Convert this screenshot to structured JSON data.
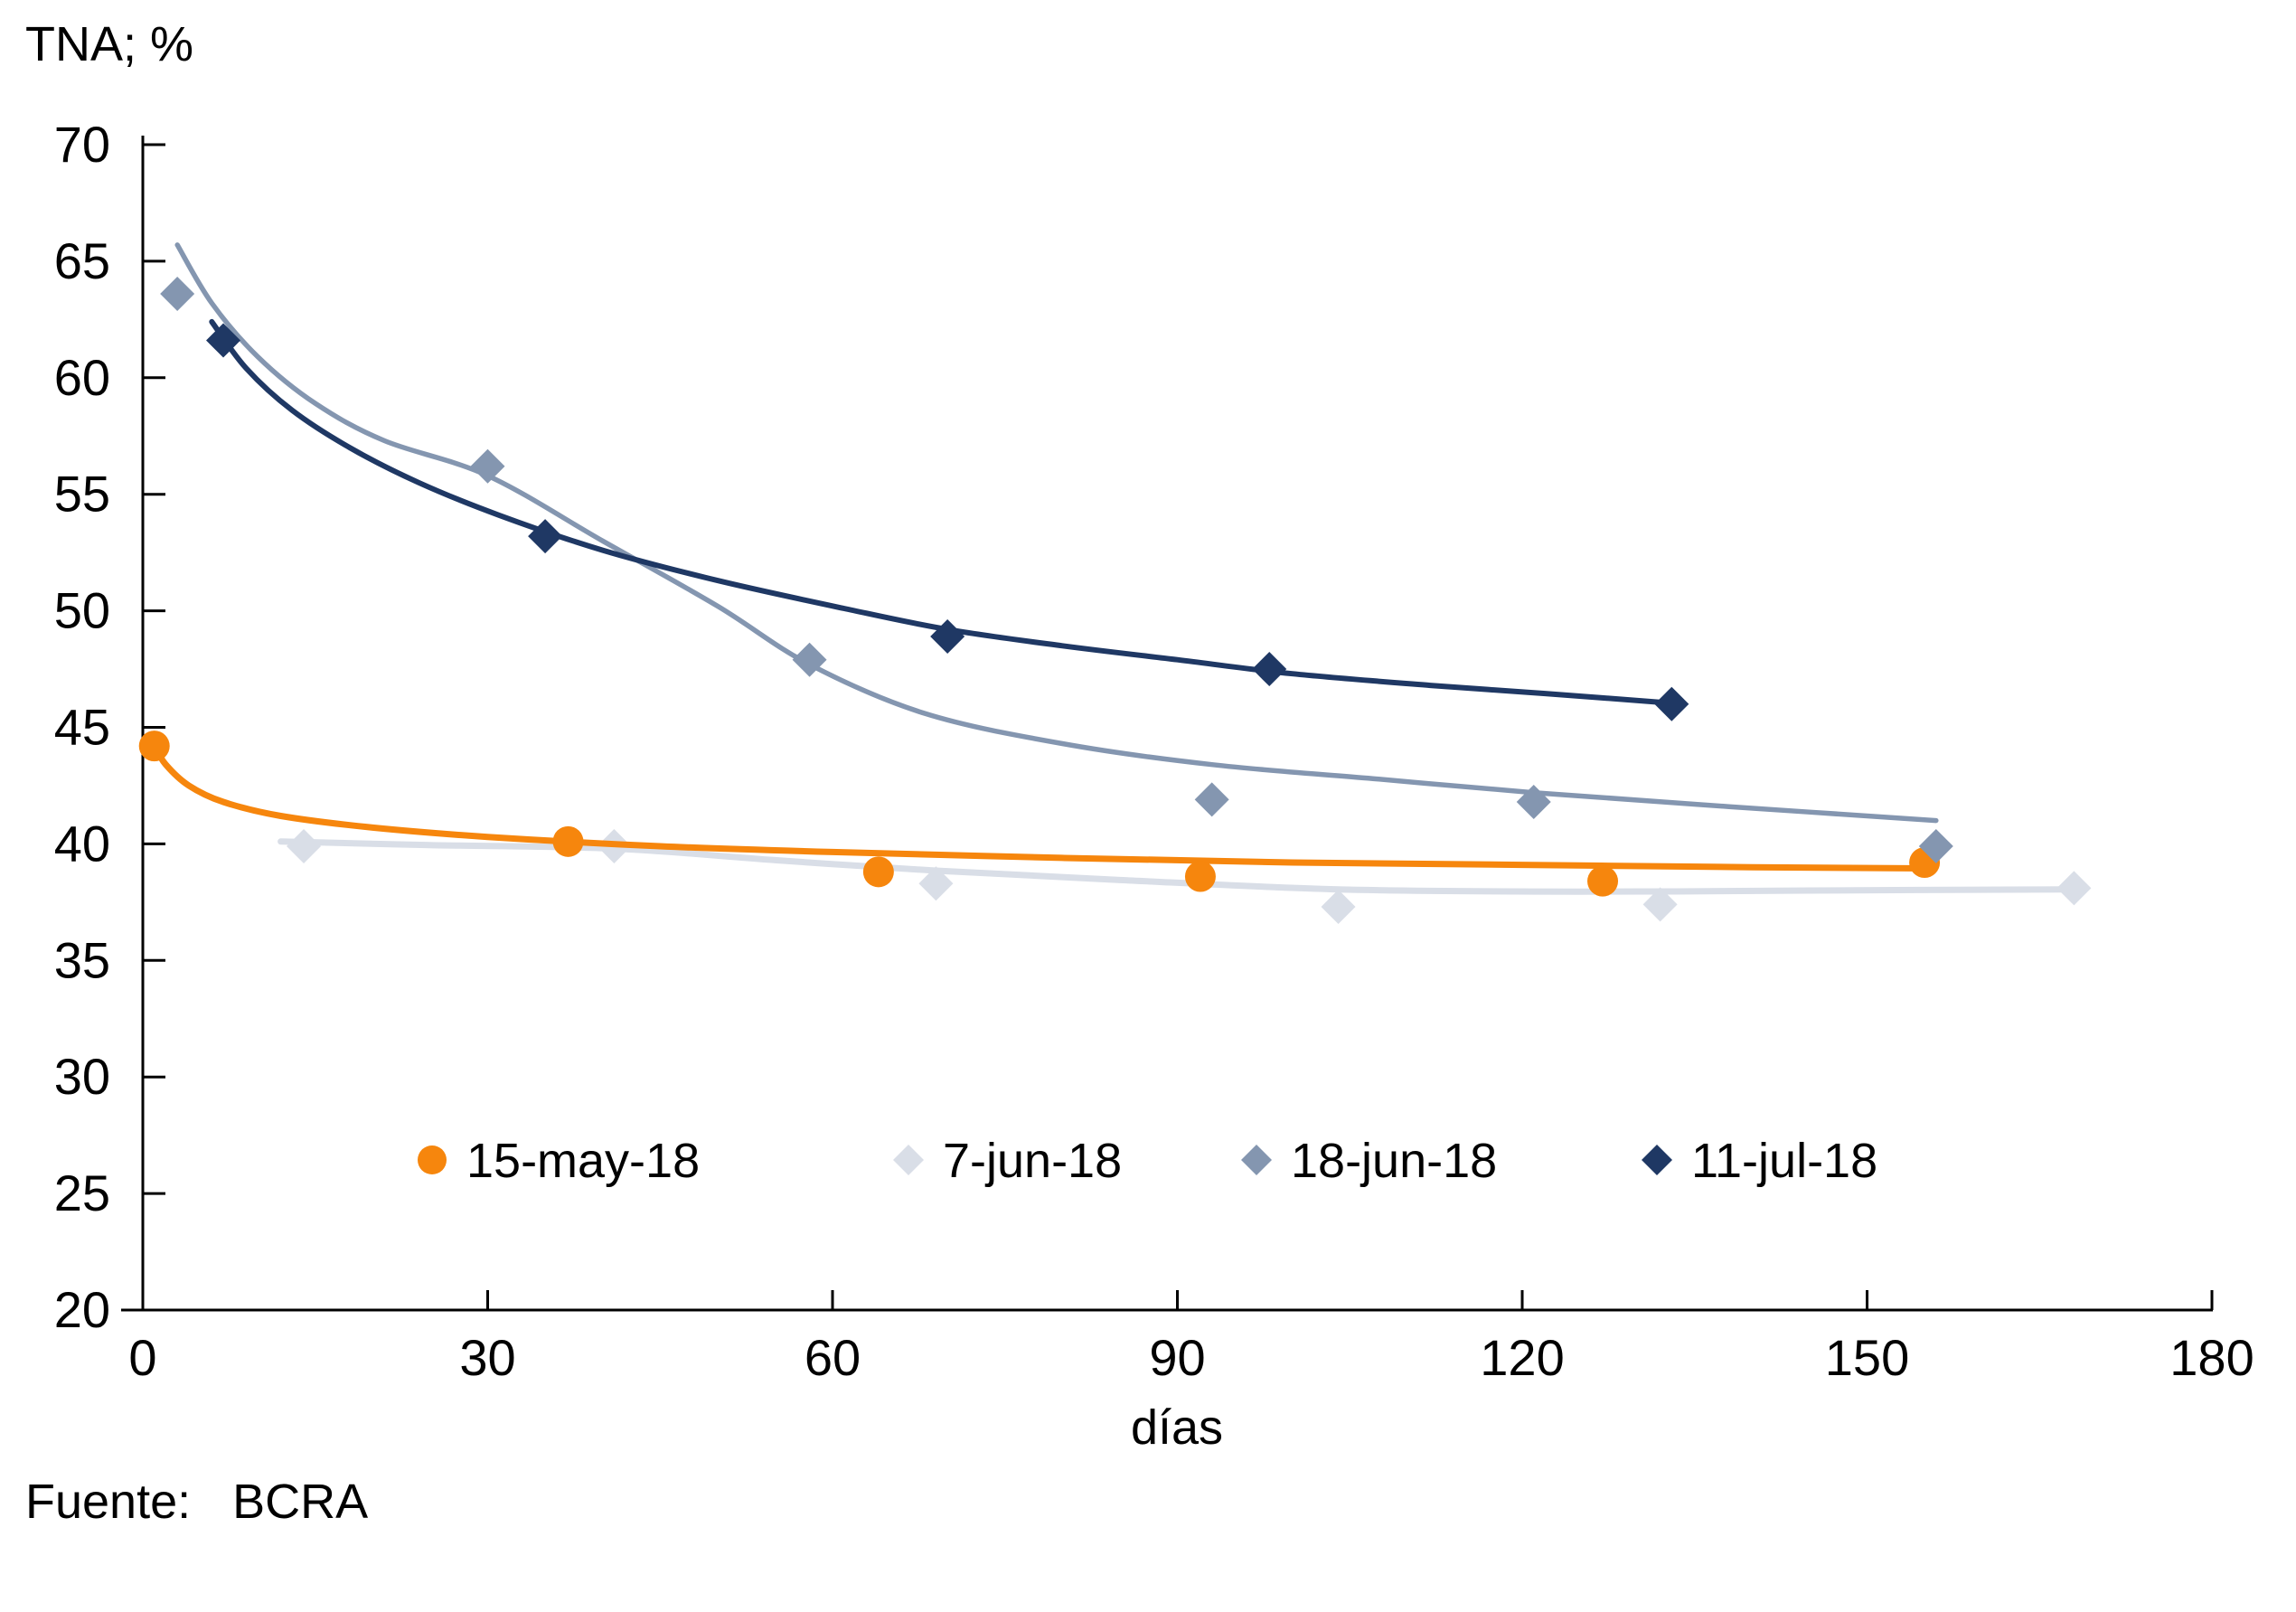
{
  "header": {
    "y_axis_title": "TNA; %"
  },
  "source": {
    "prefix": "Fuente:",
    "text": "BCRA"
  },
  "chart_data": {
    "type": "scatter",
    "title": "TNA; %",
    "xlabel": "días",
    "ylabel": "TNA; %",
    "xlim": [
      0,
      180
    ],
    "ylim": [
      20,
      70
    ],
    "x_tick_step": 30,
    "y_tick_step": 5,
    "x_ticks": [
      0,
      30,
      60,
      90,
      120,
      150,
      180
    ],
    "y_ticks": [
      70,
      65,
      60,
      55,
      50,
      45,
      40,
      35,
      30,
      25,
      20
    ],
    "grid": false,
    "legend_position": "bottom-center-inside",
    "colors": {
      "axis": "#000000",
      "text": "#000000"
    },
    "series": [
      {
        "name": "15-may-18",
        "color": "#F6860D",
        "marker": "circle",
        "points": [
          [
            1,
            44.2
          ],
          [
            37,
            40.1
          ],
          [
            64,
            38.8
          ],
          [
            92,
            38.6
          ],
          [
            127,
            38.4
          ],
          [
            155,
            39.2
          ]
        ],
        "trend": [
          [
            1,
            44.2
          ],
          [
            2,
            43.4
          ],
          [
            4,
            42.5
          ],
          [
            7,
            41.8
          ],
          [
            12,
            41.2
          ],
          [
            20,
            40.7
          ],
          [
            30,
            40.3
          ],
          [
            45,
            39.9
          ],
          [
            60,
            39.65
          ],
          [
            80,
            39.4
          ],
          [
            100,
            39.2
          ],
          [
            120,
            39.1
          ],
          [
            140,
            39.0
          ],
          [
            155,
            38.95
          ]
        ]
      },
      {
        "name": "7-jun-18",
        "color": "#D9DEE7",
        "marker": "diamond",
        "points": [
          [
            14,
            39.9
          ],
          [
            41,
            39.9
          ],
          [
            69,
            38.3
          ],
          [
            104,
            37.3
          ],
          [
            132,
            37.4
          ],
          [
            168,
            38.1
          ]
        ],
        "trend": [
          [
            12,
            40.1
          ],
          [
            25,
            39.95
          ],
          [
            41,
            39.8
          ],
          [
            55,
            39.3
          ],
          [
            69,
            38.85
          ],
          [
            85,
            38.45
          ],
          [
            104,
            38.05
          ],
          [
            125,
            37.95
          ],
          [
            145,
            38.0
          ],
          [
            168,
            38.05
          ]
        ]
      },
      {
        "name": "18-jun-18",
        "color": "#8496B0",
        "marker": "diamond",
        "points": [
          [
            3,
            63.6
          ],
          [
            30,
            56.2
          ],
          [
            58,
            47.9
          ],
          [
            93,
            41.9
          ],
          [
            121,
            41.8
          ],
          [
            156,
            39.9
          ]
        ],
        "trend": [
          [
            3,
            65.7
          ],
          [
            6,
            63.2
          ],
          [
            10,
            60.9
          ],
          [
            15,
            58.9
          ],
          [
            21,
            57.3
          ],
          [
            30,
            55.8
          ],
          [
            40,
            53.0
          ],
          [
            50,
            50.2
          ],
          [
            58,
            47.7
          ],
          [
            68,
            45.6
          ],
          [
            80,
            44.3
          ],
          [
            93,
            43.4
          ],
          [
            107,
            42.8
          ],
          [
            121,
            42.2
          ],
          [
            138,
            41.6
          ],
          [
            156,
            41.0
          ]
        ]
      },
      {
        "name": "11-jul-18",
        "color": "#1F3864",
        "marker": "diamond",
        "points": [
          [
            7,
            61.6
          ],
          [
            35,
            53.2
          ],
          [
            70,
            48.9
          ],
          [
            98,
            47.5
          ],
          [
            133,
            46.0
          ]
        ],
        "trend": [
          [
            6,
            62.4
          ],
          [
            9,
            60.4
          ],
          [
            13,
            58.6
          ],
          [
            18,
            57.0
          ],
          [
            24,
            55.5
          ],
          [
            31,
            54.1
          ],
          [
            40,
            52.6
          ],
          [
            50,
            51.3
          ],
          [
            61,
            50.1
          ],
          [
            70,
            49.2
          ],
          [
            80,
            48.5
          ],
          [
            90,
            47.9
          ],
          [
            100,
            47.3
          ],
          [
            112,
            46.8
          ],
          [
            122,
            46.45
          ],
          [
            134,
            46.0
          ]
        ]
      }
    ]
  }
}
